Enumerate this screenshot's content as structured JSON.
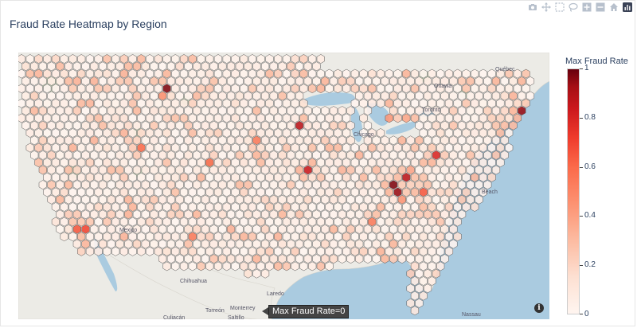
{
  "title": "Fraud Rate Heatmap by Region",
  "modebar": {
    "icons": [
      "camera-icon",
      "pan-icon",
      "box-select-icon",
      "lasso-icon",
      "zoom-in-icon",
      "zoom-out-icon",
      "home-icon",
      "plotly-logo-icon"
    ]
  },
  "colorbar": {
    "title": "Max Fraud Rate",
    "ticks": [
      "1",
      "0.8",
      "0.6",
      "0.4",
      "0.2",
      "0"
    ],
    "colorscale": [
      "#fff5f0",
      "#fee0d2",
      "#fcbba1",
      "#fc9272",
      "#fb6a4a",
      "#ef3b2c",
      "#cb181d",
      "#a50f15",
      "#67000d"
    ]
  },
  "map": {
    "places": [
      "Ottawa",
      "Québec",
      "Toronto",
      "Chicago",
      "Beach",
      "Monterrey",
      "Saltillo",
      "Torreón",
      "Chihuahua",
      "Culiacán",
      "Laredo",
      "Nassau",
      "Mexico"
    ]
  },
  "tooltip": {
    "text": "Max Fraud Rate=0"
  },
  "info_label": "i"
}
